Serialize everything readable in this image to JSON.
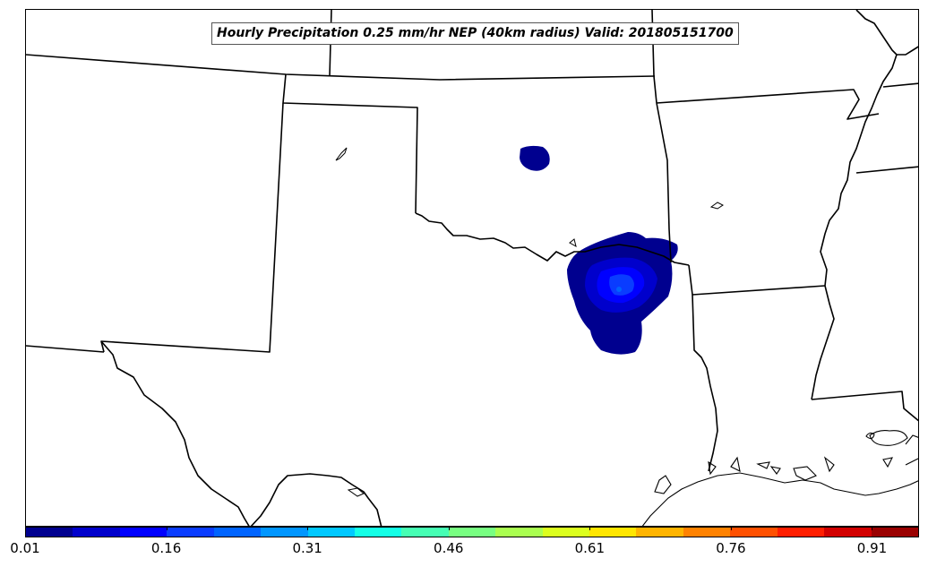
{
  "title": "Hourly Precipitation 0.25 mm/hr NEP (40km radius) Valid: 201805151700",
  "colorbar": {
    "colors": [
      "#00008f",
      "#0000cc",
      "#0000ff",
      "#0a3cff",
      "#0064ff",
      "#0096ff",
      "#00c8ff",
      "#14ffe6",
      "#46ffb4",
      "#78ff82",
      "#aaff50",
      "#dcff1e",
      "#ffe600",
      "#ffb400",
      "#ff8200",
      "#ff5000",
      "#ff1e00",
      "#d20000",
      "#9a0000"
    ],
    "ticks": [
      "0.01",
      "0.16",
      "0.31",
      "0.46",
      "0.61",
      "0.76",
      "0.91"
    ]
  },
  "map": {
    "states": [
      "Colorado",
      "Kansas",
      "Missouri",
      "Oklahoma",
      "Arkansas",
      "Texas",
      "Louisiana",
      "Mississippi",
      "New Mexico"
    ],
    "precip_areas": [
      {
        "region": "north-central Oklahoma",
        "fill": "#00008f"
      },
      {
        "region": "Red River (OK/TX border)",
        "fill": "#00008f"
      },
      {
        "region": "Red River core",
        "fill": "#0000cc"
      },
      {
        "region": "Red River core",
        "fill": "#0000ff"
      },
      {
        "region": "Red River core",
        "fill": "#0a3cff"
      }
    ]
  }
}
